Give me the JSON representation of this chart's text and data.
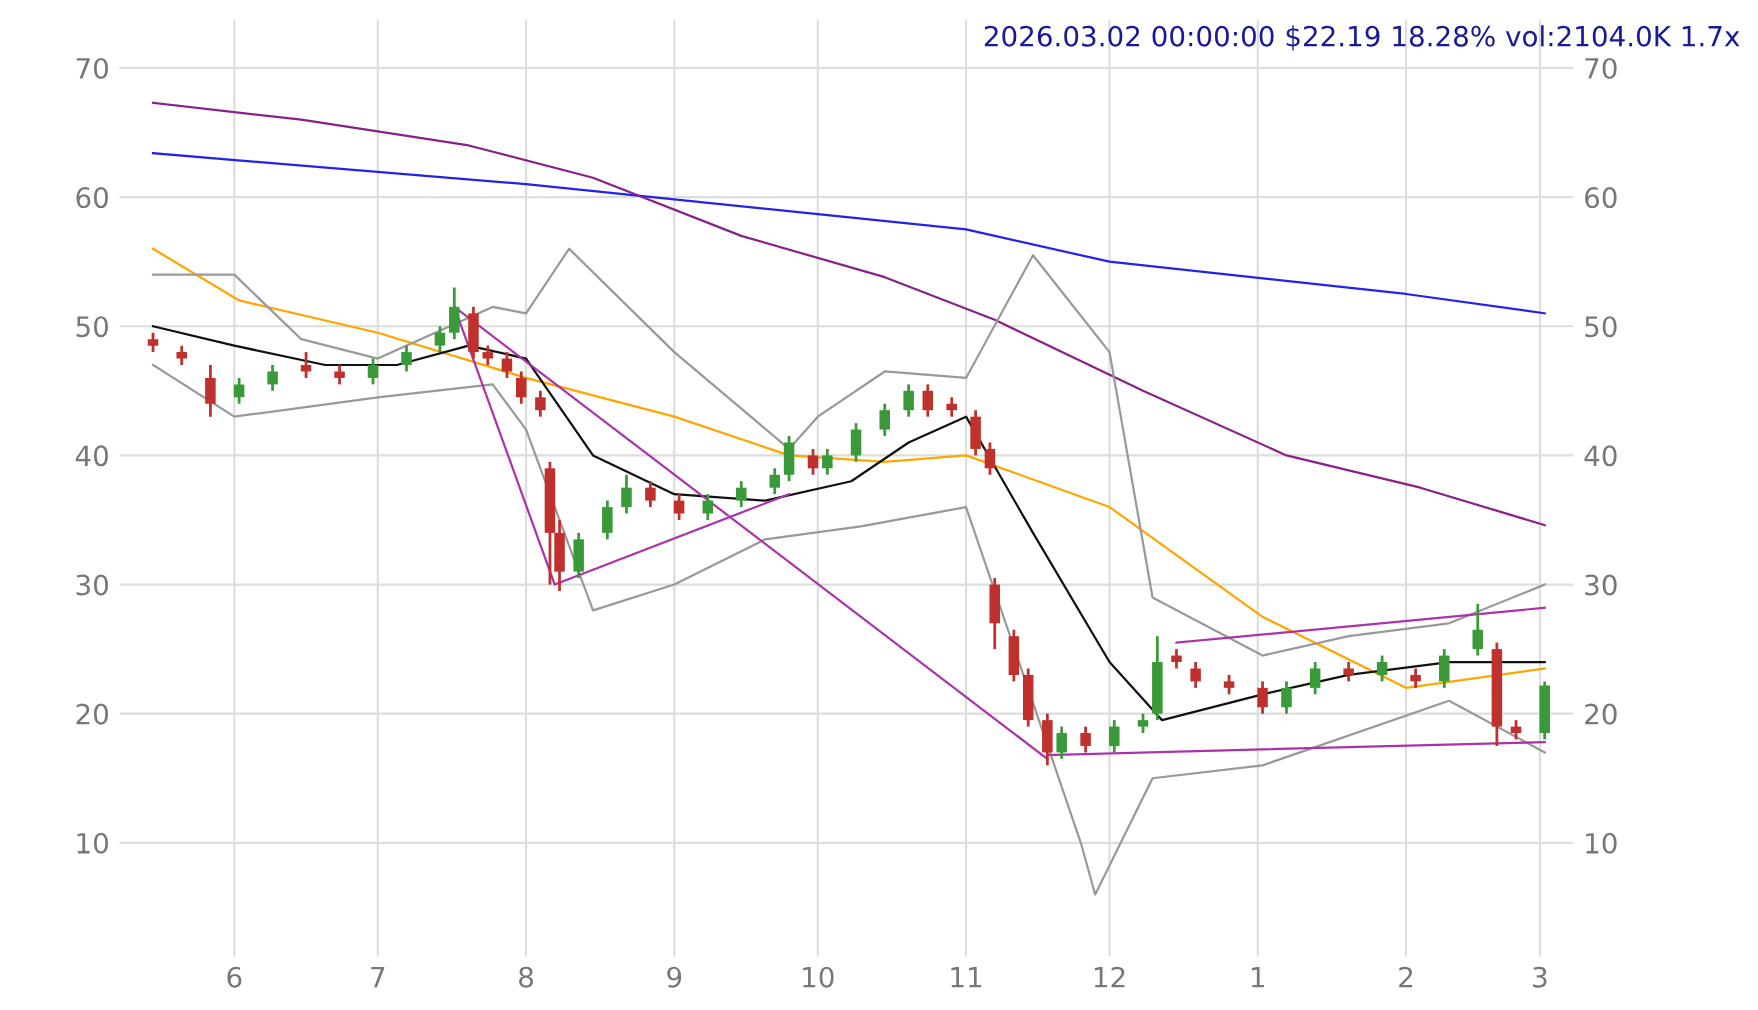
{
  "chart_data": {
    "type": "candlestick",
    "title": "2026.03.02 00:00:00 $22.19 18.28% vol:2104.0K 1.7x",
    "x": [
      "2025-05-15",
      "2025-05-21",
      "2025-05-27",
      "2025-06-02",
      "2025-06-09",
      "2025-06-16",
      "2025-06-23",
      "2025-06-30",
      "2025-07-07",
      "2025-07-14",
      "2025-07-17",
      "2025-07-21",
      "2025-07-24",
      "2025-07-28",
      "2025-07-31",
      "2025-08-04",
      "2025-08-06",
      "2025-08-08",
      "2025-08-12",
      "2025-08-18",
      "2025-08-22",
      "2025-08-27",
      "2025-09-02",
      "2025-09-08",
      "2025-09-15",
      "2025-09-22",
      "2025-09-25",
      "2025-09-30",
      "2025-10-03",
      "2025-10-09",
      "2025-10-15",
      "2025-10-20",
      "2025-10-24",
      "2025-10-29",
      "2025-11-03",
      "2025-11-06",
      "2025-11-07",
      "2025-11-11",
      "2025-11-14",
      "2025-11-18",
      "2025-11-21",
      "2025-11-26",
      "2025-12-02",
      "2025-12-08",
      "2025-12-11",
      "2025-12-15",
      "2025-12-19",
      "2025-12-26",
      "2026-01-02",
      "2026-01-07",
      "2026-01-13",
      "2026-01-20",
      "2026-01-27",
      "2026-02-03",
      "2026-02-09",
      "2026-02-16",
      "2026-02-20",
      "2026-02-24",
      "2026-03-02"
    ],
    "ohlc": [
      [
        49,
        49.5,
        48,
        48.5
      ],
      [
        48,
        48.5,
        47,
        47.5
      ],
      [
        46,
        47,
        43,
        44
      ],
      [
        44.5,
        46,
        44,
        45.5
      ],
      [
        45.5,
        47,
        45,
        46.5
      ],
      [
        47,
        48,
        46,
        46.5
      ],
      [
        46.5,
        47,
        45.5,
        46
      ],
      [
        46,
        47.5,
        45.5,
        47
      ],
      [
        47,
        48.5,
        46.5,
        48
      ],
      [
        48.5,
        50,
        48,
        49.5
      ],
      [
        49.5,
        53,
        49,
        51.5
      ],
      [
        51,
        51.5,
        47.5,
        48
      ],
      [
        48,
        48.5,
        47,
        47.5
      ],
      [
        47.5,
        48,
        46,
        46.5
      ],
      [
        46,
        46.5,
        44,
        44.5
      ],
      [
        44.5,
        45,
        43,
        43.5
      ],
      [
        39,
        39.5,
        30,
        34
      ],
      [
        34,
        35,
        29.5,
        31
      ],
      [
        31,
        34,
        30.5,
        33.5
      ],
      [
        34,
        36.5,
        33.5,
        36
      ],
      [
        36,
        38.5,
        35.5,
        37.5
      ],
      [
        37.5,
        38,
        36,
        36.5
      ],
      [
        36.5,
        37,
        35,
        35.5
      ],
      [
        35.5,
        37,
        35,
        36.5
      ],
      [
        36.5,
        38,
        36,
        37.5
      ],
      [
        37.5,
        39,
        37,
        38.5
      ],
      [
        38.5,
        41.5,
        38,
        41
      ],
      [
        40,
        40.5,
        38.5,
        39
      ],
      [
        39,
        40.5,
        38.5,
        40
      ],
      [
        40,
        42.5,
        39.5,
        42
      ],
      [
        42,
        44,
        41.5,
        43.5
      ],
      [
        43.5,
        45.5,
        43,
        45
      ],
      [
        45,
        45.5,
        43,
        43.5
      ],
      [
        44,
        44.5,
        43,
        43.5
      ],
      [
        43,
        43.5,
        40,
        40.5
      ],
      [
        40.5,
        41,
        38.5,
        39
      ],
      [
        30,
        30.5,
        25,
        27
      ],
      [
        26,
        26.5,
        22.5,
        23
      ],
      [
        23,
        23.5,
        19,
        19.5
      ],
      [
        19.5,
        20,
        16,
        17
      ],
      [
        17,
        19,
        16.5,
        18.5
      ],
      [
        18.5,
        19,
        17,
        17.5
      ],
      [
        17.5,
        19.5,
        17,
        19
      ],
      [
        19,
        20,
        18.5,
        19.5
      ],
      [
        20,
        26,
        19.5,
        24
      ],
      [
        24.5,
        25,
        23.5,
        24
      ],
      [
        23.5,
        24,
        22,
        22.5
      ],
      [
        22.5,
        23,
        21.5,
        22
      ],
      [
        22,
        22.5,
        20,
        20.5
      ],
      [
        20.5,
        22.5,
        20,
        22
      ],
      [
        22,
        24,
        21.5,
        23.5
      ],
      [
        23.5,
        24,
        22.5,
        23
      ],
      [
        23,
        24.5,
        22.5,
        24
      ],
      [
        23,
        23.5,
        22,
        22.5
      ],
      [
        22.5,
        25,
        22,
        24.5
      ],
      [
        25,
        28.5,
        24.5,
        26.5
      ],
      [
        25,
        25.5,
        17.5,
        19
      ],
      [
        19,
        19.5,
        18,
        18.5
      ],
      [
        18.5,
        22.5,
        18,
        22.19
      ]
    ],
    "colors": [
      "#c0302c",
      "#c0302c",
      "#c0302c",
      "#3a9a3a",
      "#3a9a3a",
      "#c0302c",
      "#c0302c",
      "#3a9a3a",
      "#3a9a3a",
      "#3a9a3a",
      "#3a9a3a",
      "#c0302c",
      "#c0302c",
      "#c0302c",
      "#c0302c",
      "#c0302c",
      "#c0302c",
      "#c0302c",
      "#3a9a3a",
      "#3a9a3a",
      "#3a9a3a",
      "#c0302c",
      "#c0302c",
      "#3a9a3a",
      "#3a9a3a",
      "#3a9a3a",
      "#3a9a3a",
      "#c0302c",
      "#3a9a3a",
      "#3a9a3a",
      "#3a9a3a",
      "#3a9a3a",
      "#c0302c",
      "#c0302c",
      "#c0302c",
      "#c0302c",
      "#c0302c",
      "#c0302c",
      "#c0302c",
      "#c0302c",
      "#3a9a3a",
      "#c0302c",
      "#3a9a3a",
      "#3a9a3a",
      "#3a9a3a",
      "#c0302c",
      "#c0302c",
      "#c0302c",
      "#c0302c",
      "#3a9a3a",
      "#3a9a3a",
      "#c0302c",
      "#3a9a3a",
      "#c0302c",
      "#3a9a3a",
      "#3a9a3a",
      "#c0302c",
      "#c0302c",
      "#3a9a3a"
    ],
    "series": [
      {
        "type": "line",
        "color": "#2222ee",
        "x": [
          "2025-05-15",
          "2025-08-01",
          "2025-11-01",
          "2025-12-01",
          "2026-02-01",
          "2026-03-02"
        ],
        "values": [
          63.4,
          61,
          57.5,
          55,
          52.5,
          51
        ]
      },
      {
        "type": "line",
        "color": "#882288",
        "x": [
          "2025-05-15",
          "2025-06-15",
          "2025-07-20",
          "2025-08-15",
          "2025-09-15",
          "2025-10-15",
          "2025-11-07",
          "2025-12-08",
          "2026-01-07",
          "2026-02-04",
          "2026-03-02"
        ],
        "values": [
          67.3,
          66,
          64,
          61.5,
          57,
          53.8,
          50.5,
          45,
          40,
          37.5,
          34.6
        ]
      },
      {
        "type": "line",
        "color": "#ffa500",
        "x": [
          "2025-05-15",
          "2025-06-02",
          "2025-07-01",
          "2025-08-01",
          "2025-09-01",
          "2025-09-25",
          "2025-10-15",
          "2025-11-01",
          "2025-12-01",
          "2026-01-02",
          "2026-02-01",
          "2026-03-02"
        ],
        "values": [
          56,
          52,
          49.5,
          46,
          43,
          40,
          39.5,
          40,
          36,
          27.5,
          22,
          23.5
        ]
      },
      {
        "type": "line",
        "color": "#111111",
        "x": [
          "2025-05-15",
          "2025-06-01",
          "2025-06-20",
          "2025-07-05",
          "2025-07-20",
          "2025-08-01",
          "2025-08-15",
          "2025-09-01",
          "2025-09-20",
          "2025-10-08",
          "2025-10-20",
          "2025-11-01",
          "2025-11-15",
          "2025-12-01",
          "2025-12-12",
          "2026-01-02",
          "2026-01-20",
          "2026-02-10",
          "2026-03-02"
        ],
        "values": [
          50,
          48.5,
          47,
          47,
          48.5,
          47.5,
          40,
          37,
          36.5,
          38,
          41,
          43,
          34,
          24,
          19.5,
          21.5,
          23,
          24,
          24
        ]
      },
      {
        "type": "line",
        "color": "#999999",
        "x": [
          "2025-05-15",
          "2025-06-01",
          "2025-06-15",
          "2025-07-01",
          "2025-07-25",
          "2025-08-01",
          "2025-08-10",
          "2025-09-01",
          "2025-09-25",
          "2025-10-01",
          "2025-10-15",
          "2025-11-01",
          "2025-11-15",
          "2025-12-01",
          "2025-12-10",
          "2026-01-02",
          "2026-01-20",
          "2026-02-10",
          "2026-03-02"
        ],
        "values": [
          54,
          54,
          49,
          47.5,
          51.5,
          51,
          56,
          48,
          40.5,
          43,
          46.5,
          46,
          55.5,
          48,
          29,
          24.5,
          26,
          27,
          30
        ]
      },
      {
        "type": "line",
        "color": "#999999",
        "x": [
          "2025-05-15",
          "2025-06-01",
          "2025-07-01",
          "2025-07-25",
          "2025-08-01",
          "2025-08-15",
          "2025-09-01",
          "2025-09-20",
          "2025-10-10",
          "2025-11-01",
          "2025-11-25",
          "2025-11-28",
          "2025-12-10",
          "2026-01-02",
          "2026-02-10",
          "2026-03-02"
        ],
        "values": [
          47,
          43,
          44.5,
          45.5,
          42,
          28,
          30,
          33.5,
          34.5,
          36,
          10,
          6,
          15,
          16,
          21,
          17
        ]
      },
      {
        "type": "line",
        "color": "#aa33aa",
        "x": [
          "2025-07-17",
          "2025-08-07",
          "2025-09-25"
        ],
        "values": [
          51.5,
          30,
          37
        ]
      },
      {
        "type": "line",
        "color": "#aa33aa",
        "x": [
          "2025-07-17",
          "2025-11-18"
        ],
        "values": [
          51.5,
          16.5
        ]
      },
      {
        "type": "line",
        "color": "#aa33aa",
        "x": [
          "2025-11-18",
          "2026-03-02"
        ],
        "values": [
          16.8,
          17.8
        ]
      },
      {
        "type": "line",
        "color": "#aa33aa",
        "x": [
          "2025-12-15",
          "2026-03-02"
        ],
        "values": [
          25.5,
          28.2
        ]
      }
    ],
    "xlim": [
      "2025-05-08",
      "2026-03-08"
    ],
    "xticks": [
      {
        "value": "2025-06-01",
        "label": "6"
      },
      {
        "value": "2025-07-01",
        "label": "7"
      },
      {
        "value": "2025-08-01",
        "label": "8"
      },
      {
        "value": "2025-09-01",
        "label": "9"
      },
      {
        "value": "2025-10-01",
        "label": "10"
      },
      {
        "value": "2025-11-01",
        "label": "11"
      },
      {
        "value": "2025-12-01",
        "label": "12"
      },
      {
        "value": "2026-01-01",
        "label": "1"
      },
      {
        "value": "2026-02-01",
        "label": "2"
      },
      {
        "value": "2026-03-01",
        "label": "3"
      }
    ],
    "ylim": [
      1.2,
      73.7
    ],
    "yticks": [
      10,
      20,
      30,
      40,
      50,
      60,
      70
    ],
    "y2lim": [
      1.2,
      73.7
    ],
    "y2ticks": [
      10,
      20,
      30,
      40,
      50,
      60,
      70
    ],
    "grid": true
  }
}
